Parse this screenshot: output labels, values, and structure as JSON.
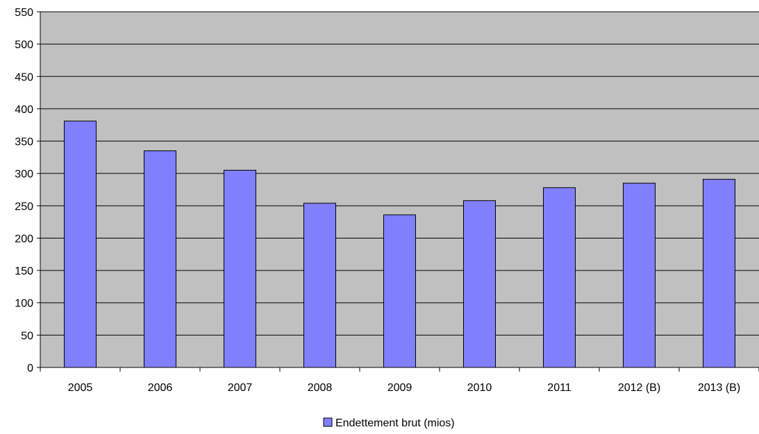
{
  "chart_data": {
    "type": "bar",
    "title": "",
    "xlabel": "",
    "ylabel": "",
    "categories": [
      "2005",
      "2006",
      "2007",
      "2008",
      "2009",
      "2010",
      "2011",
      "2012 (B)",
      "2013 (B)"
    ],
    "series": [
      {
        "name": "Endettement brut (mios)",
        "values": [
          381,
          335,
          305,
          254,
          236,
          258,
          278,
          285,
          291
        ]
      }
    ],
    "ylim": [
      0,
      550
    ],
    "yticks": [
      0,
      50,
      100,
      150,
      200,
      250,
      300,
      350,
      400,
      450,
      500,
      550
    ],
    "grid": true,
    "legend_position": "bottom",
    "colors": {
      "bar": "#8080ff",
      "plot_background": "#c0c0c0",
      "gridline": "#000000"
    }
  }
}
